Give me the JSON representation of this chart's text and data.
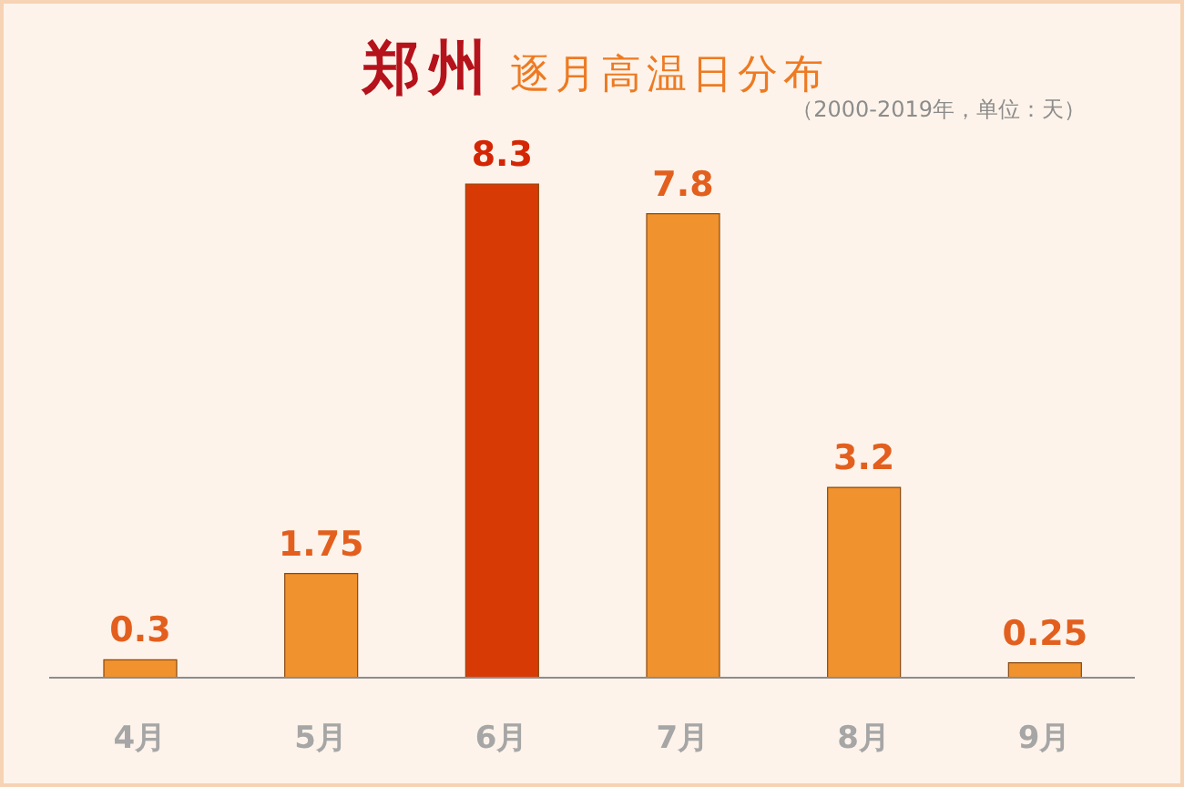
{
  "chart_data": {
    "type": "bar",
    "title": "郑州 逐月高温日分布",
    "annotations": [
      "（2000-2019年，单位：天）"
    ],
    "categories": [
      "4月",
      "5月",
      "6月",
      "7月",
      "8月",
      "9月"
    ],
    "values": [
      0.3,
      1.75,
      8.3,
      7.8,
      3.2,
      0.25
    ],
    "colors": [
      "#f0922e",
      "#f0922e",
      "#d83a06",
      "#f0922e",
      "#f0922e",
      "#f0922e"
    ],
    "data_labels": true
  }
}
